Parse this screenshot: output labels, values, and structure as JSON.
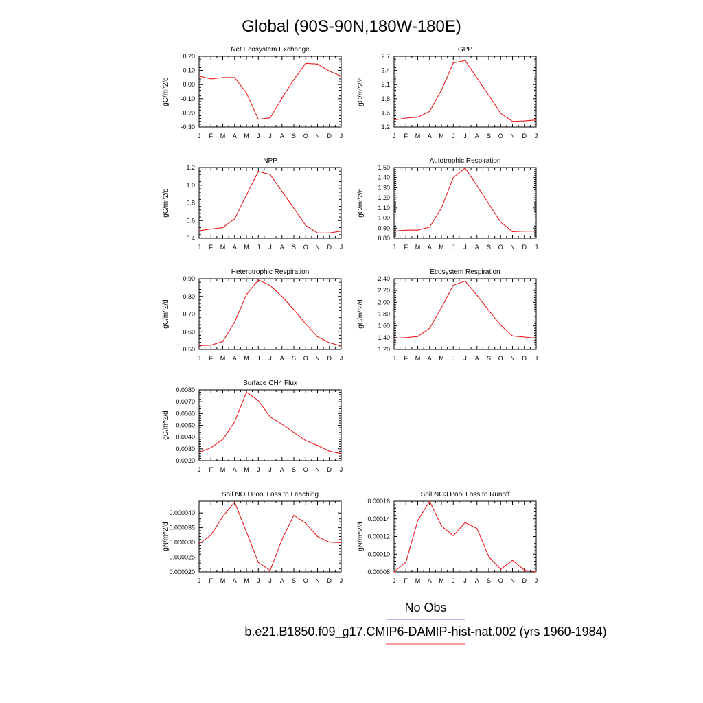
{
  "figure": {
    "title": "Global (90S-90N,180W-180E)",
    "legend": [
      {
        "label": "No Obs",
        "color": "#6b6bef"
      },
      {
        "label": "b.e21.B1850.f09_g17.CMIP6-DAMIP-hist-nat.002 (yrs 1960-1984)",
        "color": "#ef2f2f"
      }
    ],
    "series_color": "#e81a1a"
  },
  "chart_data": [
    {
      "type": "line",
      "title": "Net Ecosystem Exchange",
      "ylabel": "gC/m^2/d",
      "categories": [
        "J",
        "F",
        "M",
        "A",
        "M",
        "J",
        "J",
        "A",
        "S",
        "O",
        "N",
        "D",
        "J"
      ],
      "ylim": [
        -0.3,
        0.2
      ],
      "yticks": [
        "0.20",
        "0.10",
        "0.00",
        "-0.10",
        "-0.20",
        "-0.30"
      ],
      "values": [
        0.06,
        0.04,
        0.05,
        0.05,
        -0.06,
        -0.245,
        -0.235,
        -0.095,
        0.035,
        0.15,
        0.145,
        0.095,
        0.06
      ]
    },
    {
      "type": "line",
      "title": "GPP",
      "ylabel": "gC/m^2/d",
      "categories": [
        "J",
        "F",
        "M",
        "A",
        "M",
        "J",
        "J",
        "A",
        "S",
        "O",
        "N",
        "D",
        "J"
      ],
      "ylim": [
        1.2,
        2.7
      ],
      "yticks": [
        "2.7",
        "2.4",
        "2.1",
        "1.8",
        "1.5",
        "1.2"
      ],
      "values": [
        1.35,
        1.39,
        1.41,
        1.53,
        1.98,
        2.56,
        2.61,
        2.24,
        1.87,
        1.49,
        1.32,
        1.33,
        1.35
      ]
    },
    {
      "type": "line",
      "title": "NPP",
      "ylabel": "gC/m^2/d",
      "categories": [
        "J",
        "F",
        "M",
        "A",
        "M",
        "J",
        "J",
        "A",
        "S",
        "O",
        "N",
        "D",
        "J"
      ],
      "ylim": [
        0.4,
        1.2
      ],
      "yticks": [
        "1.2",
        "1.0",
        "0.8",
        "0.6",
        "0.4"
      ],
      "values": [
        0.485,
        0.505,
        0.52,
        0.62,
        0.89,
        1.155,
        1.12,
        0.93,
        0.74,
        0.545,
        0.46,
        0.46,
        0.48
      ]
    },
    {
      "type": "line",
      "title": "Autotrophic Respiration",
      "ylabel": "gC/m^2/d",
      "categories": [
        "J",
        "F",
        "M",
        "A",
        "M",
        "J",
        "J",
        "A",
        "S",
        "O",
        "N",
        "D",
        "J"
      ],
      "ylim": [
        0.8,
        1.5
      ],
      "yticks": [
        "1.50",
        "1.40",
        "1.30",
        "1.20",
        "1.10",
        "1.00",
        "0.90",
        "0.80"
      ],
      "values": [
        0.87,
        0.88,
        0.88,
        0.91,
        1.1,
        1.4,
        1.495,
        1.32,
        1.14,
        0.96,
        0.865,
        0.87,
        0.87
      ]
    },
    {
      "type": "line",
      "title": "Heterotrophic Respiration",
      "ylabel": "gC/m^2/d",
      "categories": [
        "J",
        "F",
        "M",
        "A",
        "M",
        "J",
        "J",
        "A",
        "S",
        "O",
        "N",
        "D",
        "J"
      ],
      "ylim": [
        0.5,
        0.9
      ],
      "yticks": [
        "0.90",
        "0.80",
        "0.70",
        "0.60",
        "0.50"
      ],
      "values": [
        0.522,
        0.524,
        0.545,
        0.655,
        0.81,
        0.893,
        0.862,
        0.8,
        0.725,
        0.645,
        0.572,
        0.538,
        0.52
      ]
    },
    {
      "type": "line",
      "title": "Ecosystem Respiration",
      "ylabel": "gC/m^2/d",
      "categories": [
        "J",
        "F",
        "M",
        "A",
        "M",
        "J",
        "J",
        "A",
        "S",
        "O",
        "N",
        "D",
        "J"
      ],
      "ylim": [
        1.2,
        2.4
      ],
      "yticks": [
        "2.40",
        "2.20",
        "2.00",
        "1.80",
        "1.60",
        "1.40",
        "1.20"
      ],
      "values": [
        1.39,
        1.4,
        1.42,
        1.56,
        1.91,
        2.29,
        2.36,
        2.12,
        1.86,
        1.61,
        1.43,
        1.41,
        1.39
      ]
    },
    {
      "type": "line",
      "title": "Surface CH4 Flux",
      "ylabel": "gC/m^2/d",
      "categories": [
        "J",
        "F",
        "M",
        "A",
        "M",
        "J",
        "J",
        "A",
        "S",
        "O",
        "N",
        "D",
        "J"
      ],
      "ylim": [
        0.002,
        0.008
      ],
      "yticks": [
        "0.0080",
        "0.0070",
        "0.0060",
        "0.0050",
        "0.0040",
        "0.0030",
        "0.0020"
      ],
      "values": [
        0.0027,
        0.0031,
        0.0038,
        0.0053,
        0.0078,
        0.0071,
        0.0057,
        0.0051,
        0.0044,
        0.0037,
        0.0033,
        0.0028,
        0.0026
      ]
    },
    {
      "type": "line",
      "title": "Soil NO3 Pool Loss to Leaching",
      "ylabel": "gN/m^2/d",
      "categories": [
        "J",
        "F",
        "M",
        "A",
        "M",
        "J",
        "J",
        "A",
        "S",
        "O",
        "N",
        "D",
        "J"
      ],
      "ylim": [
        2e-05,
        4.4e-05
      ],
      "yticks": [
        "0.000040",
        "0.000035",
        "0.000030",
        "0.000025",
        "0.000020"
      ],
      "ytick_values": [
        4e-05,
        3.5e-05,
        3e-05,
        2.5e-05,
        2e-05
      ],
      "values": [
        2.95e-05,
        3.25e-05,
        3.88e-05,
        4.37e-05,
        3.35e-05,
        2.32e-05,
        2.05e-05,
        3.1e-05,
        3.92e-05,
        3.65e-05,
        3.2e-05,
        3.01e-05,
        2.99e-05
      ]
    },
    {
      "type": "line",
      "title": "Soil NO3 Pool Loss to Runoff",
      "ylabel": "gN/m^2/d",
      "categories": [
        "J",
        "F",
        "M",
        "A",
        "M",
        "J",
        "J",
        "A",
        "S",
        "O",
        "N",
        "D",
        "J"
      ],
      "ylim": [
        8e-05,
        0.00016
      ],
      "yticks": [
        "0.00016",
        "0.00014",
        "0.00012",
        "0.00010",
        "0.00008"
      ],
      "values": [
        8e-05,
        9.1e-05,
        0.000138,
        0.00016,
        0.000132,
        0.000121,
        0.000136,
        0.000129,
        9.7e-05,
        8.3e-05,
        9.3e-05,
        8.2e-05,
        8e-05
      ]
    }
  ]
}
